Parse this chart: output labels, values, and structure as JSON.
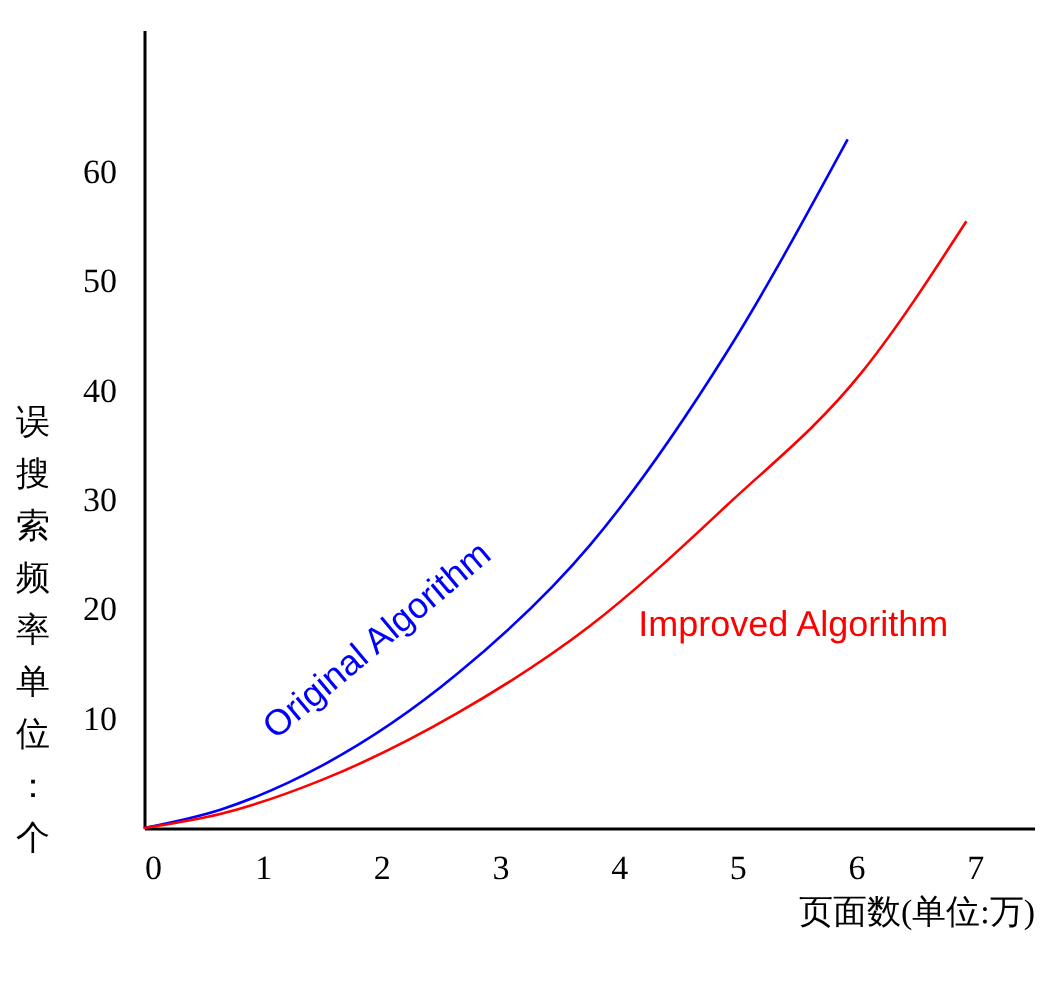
{
  "chart_data": {
    "type": "line",
    "xlabel": "页面数(单位:万)",
    "ylabel": "误搜索频率单位：个",
    "xlim": [
      0,
      7.5
    ],
    "ylim": [
      0,
      73
    ],
    "xticks": [
      0,
      1,
      2,
      3,
      4,
      5,
      6,
      7
    ],
    "yticks": [
      10,
      20,
      30,
      40,
      50,
      60
    ],
    "grid": false,
    "marker": "none",
    "line_style": "solid",
    "series": [
      {
        "name": "Original Algorithm",
        "color": "#0000ff",
        "x": [
          0,
          0.65,
          1.5,
          2.64,
          3.76,
          4.91,
          5.93
        ],
        "values": [
          0,
          1.7,
          5.7,
          14.1,
          25.9,
          43.5,
          63.0
        ]
      },
      {
        "name": "Improved Algorithm",
        "color": "#ff0000",
        "x": [
          0,
          0.65,
          1.5,
          2.64,
          3.76,
          4.91,
          6.05,
          6.93
        ],
        "values": [
          0,
          1.3,
          4.4,
          10.5,
          18.5,
          29.5,
          41.7,
          55.5
        ]
      }
    ]
  }
}
